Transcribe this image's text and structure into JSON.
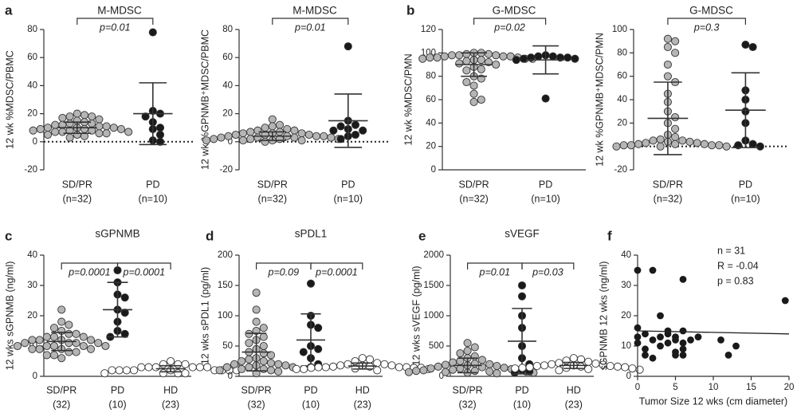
{
  "chart_data": [
    {
      "type": "dotplot",
      "panel": "a",
      "title": "M-MDSC",
      "ylabel": "12 wk %MDSC/PBMC",
      "ylim": [
        -20,
        80
      ],
      "yticks": [
        -20,
        0,
        20,
        40,
        60,
        80
      ],
      "categories": [
        "SD/PR",
        "PD"
      ],
      "category_notes": [
        "(n=32)",
        "(n=10)"
      ],
      "groups": [
        {
          "color": "#b5b5b5",
          "values": [
            20,
            19,
            18,
            18,
            17,
            16,
            15,
            14,
            13,
            13,
            12,
            12,
            11,
            11,
            10,
            10,
            10,
            9,
            9,
            9,
            8,
            8,
            8,
            7,
            7,
            7,
            6,
            6,
            5,
            5,
            4,
            3
          ],
          "mean": 10,
          "sd": 4
        },
        {
          "color": "#1a1a1a",
          "values": [
            78,
            22,
            20,
            18,
            14,
            10,
            9,
            5,
            1,
            0
          ],
          "mean": 20,
          "sd": 22
        }
      ],
      "comparisons": [
        {
          "between": [
            0,
            1
          ],
          "label": "p=0.01"
        }
      ]
    },
    {
      "type": "dotplot",
      "title": "M-MDSC",
      "ylabel": "12 wk %GPNMB⁺MDSC/PBMC",
      "ylim": [
        -20,
        80
      ],
      "yticks": [
        -20,
        0,
        20,
        40,
        60,
        80
      ],
      "categories": [
        "SD/PR",
        "PD"
      ],
      "category_notes": [
        "(n=32)",
        "(n=10)"
      ],
      "groups": [
        {
          "color": "#b5b5b5",
          "values": [
            16,
            12,
            11,
            10,
            9,
            8,
            8,
            7,
            7,
            6,
            6,
            6,
            5,
            5,
            5,
            4,
            4,
            4,
            4,
            3,
            3,
            3,
            3,
            2,
            2,
            2,
            2,
            1,
            1,
            1,
            1,
            0
          ],
          "mean": 4,
          "sd": 3
        },
        {
          "color": "#1a1a1a",
          "values": [
            68,
            15,
            12,
            11,
            9,
            8,
            8,
            5,
            4,
            2
          ],
          "mean": 15,
          "sd": 19
        }
      ],
      "comparisons": [
        {
          "between": [
            0,
            1
          ],
          "label": "p=0.01"
        }
      ]
    },
    {
      "type": "dotplot",
      "panel": "b",
      "title": "G-MDSC",
      "ylabel": "12 wk %MDSC/PMN",
      "ylim": [
        0,
        120
      ],
      "yticks": [
        0,
        20,
        40,
        60,
        80,
        100,
        120
      ],
      "categories": [
        "SD/PR",
        "PD"
      ],
      "category_notes": [
        "(n=32)",
        "(n=10)"
      ],
      "groups": [
        {
          "color": "#b5b5b5",
          "values": [
            100,
            100,
            99,
            99,
            98,
            98,
            98,
            97,
            97,
            97,
            96,
            96,
            96,
            95,
            95,
            95,
            94,
            94,
            93,
            92,
            91,
            90,
            88,
            86,
            85,
            80,
            78,
            75,
            72,
            65,
            60,
            58
          ],
          "mean": 90,
          "sd": 10
        },
        {
          "color": "#1a1a1a",
          "values": [
            98,
            97,
            97,
            96,
            96,
            96,
            95,
            95,
            94,
            61
          ],
          "mean": 94,
          "sd": 12
        }
      ],
      "comparisons": [
        {
          "between": [
            0,
            1
          ],
          "label": "p=0.02"
        }
      ]
    },
    {
      "type": "dotplot",
      "title": "G-MDSC",
      "ylabel": "12 wk %GPNMB⁺MDSC/PMN",
      "ylim": [
        -20,
        100
      ],
      "yticks": [
        -20,
        0,
        20,
        40,
        60,
        80,
        100
      ],
      "categories": [
        "SD/PR",
        "PD"
      ],
      "category_notes": [
        "(n=32)",
        "(n=10)"
      ],
      "groups": [
        {
          "color": "#b5b5b5",
          "values": [
            92,
            90,
            85,
            80,
            70,
            60,
            55,
            45,
            38,
            30,
            25,
            20,
            15,
            10,
            8,
            6,
            5,
            5,
            4,
            4,
            3,
            3,
            2,
            2,
            2,
            1,
            1,
            1,
            1,
            0,
            0,
            0
          ],
          "mean": 24,
          "sd": 31
        },
        {
          "color": "#1a1a1a",
          "values": [
            87,
            85,
            48,
            40,
            30,
            20,
            5,
            2,
            1,
            0
          ],
          "mean": 31,
          "sd": 32
        }
      ],
      "comparisons": [
        {
          "between": [
            0,
            1
          ],
          "label": "p=0.3"
        }
      ]
    },
    {
      "type": "dotplot",
      "panel": "c",
      "title": "sGPNMB",
      "ylabel": "12 wks sGPNMB (ng/ml)",
      "ylim": [
        0,
        40
      ],
      "yticks": [
        0,
        10,
        20,
        30,
        40
      ],
      "categories": [
        "SD/PR",
        "PD",
        "HD"
      ],
      "category_notes": [
        "(32)",
        "(10)",
        "(23)"
      ],
      "groups": [
        {
          "color": "#b5b5b5",
          "values": [
            22,
            18,
            17,
            16,
            15,
            14,
            14,
            13,
            13,
            13,
            12,
            12,
            12,
            12,
            11,
            11,
            11,
            11,
            10,
            10,
            10,
            10,
            10,
            9,
            9,
            9,
            9,
            8,
            8,
            7,
            7,
            6
          ],
          "mean": 11.5,
          "sd": 3
        },
        {
          "color": "#1a1a1a",
          "values": [
            35,
            31,
            27,
            26,
            22,
            21,
            18,
            15,
            14,
            13
          ],
          "mean": 22,
          "sd": 9
        },
        {
          "color": "#ffffff",
          "values": [
            5,
            4,
            4,
            4,
            3,
            3,
            3,
            3,
            3,
            3,
            2,
            2,
            2,
            2,
            2,
            2,
            2,
            2,
            2,
            1,
            1,
            1,
            1
          ],
          "mean": 2.5,
          "sd": 1
        }
      ],
      "comparisons": [
        {
          "between": [
            0,
            1
          ],
          "label": "p=0.0001"
        },
        {
          "between": [
            1,
            2
          ],
          "label": "p=0.0001"
        }
      ]
    },
    {
      "type": "dotplot",
      "panel": "d",
      "title": "sPDL1",
      "ylabel": "12 wks sPDL1 (pg/ml)",
      "ylim": [
        0,
        200
      ],
      "yticks": [
        0,
        50,
        100,
        150,
        200
      ],
      "categories": [
        "SD/PR",
        "PD",
        "HD"
      ],
      "category_notes": [
        "(32)",
        "(10)",
        "(23)"
      ],
      "groups": [
        {
          "color": "#b5b5b5",
          "values": [
            138,
            110,
            90,
            80,
            75,
            70,
            65,
            60,
            55,
            50,
            45,
            40,
            38,
            35,
            30,
            28,
            25,
            25,
            22,
            20,
            20,
            18,
            18,
            15,
            15,
            15,
            12,
            12,
            10,
            10,
            8,
            5
          ],
          "mean": 40,
          "sd": 31
        },
        {
          "color": "#1a1a1a",
          "values": [
            153,
            100,
            85,
            80,
            50,
            45,
            40,
            30,
            20,
            15
          ],
          "mean": 60,
          "sd": 43
        },
        {
          "color": "#ffffff",
          "values": [
            30,
            28,
            25,
            22,
            20,
            20,
            18,
            18,
            18,
            16,
            16,
            15,
            15,
            15,
            15,
            14,
            14,
            14,
            13,
            12,
            12,
            12,
            10
          ],
          "mean": 17,
          "sd": 5
        }
      ],
      "comparisons": [
        {
          "between": [
            0,
            1
          ],
          "label": "p=0.09"
        },
        {
          "between": [
            1,
            2
          ],
          "label": "p=0.0001"
        }
      ]
    },
    {
      "type": "dotplot",
      "panel": "e",
      "title": "sVEGF",
      "ylabel": "12 wks sVEGF (pg/ml)",
      "ylim": [
        0,
        2000
      ],
      "yticks": [
        0,
        500,
        1000,
        1500,
        2000
      ],
      "categories": [
        "SD/PR",
        "PD",
        "HD"
      ],
      "category_notes": [
        "(32)",
        "(10)",
        "(23)"
      ],
      "groups": [
        {
          "color": "#b5b5b5",
          "values": [
            550,
            480,
            420,
            380,
            330,
            300,
            270,
            250,
            230,
            210,
            200,
            190,
            180,
            170,
            160,
            150,
            140,
            130,
            130,
            120,
            110,
            100,
            100,
            90,
            90,
            80,
            80,
            70,
            70,
            60,
            60,
            50
          ],
          "mean": 180,
          "sd": 120
        },
        {
          "color": "#1a1a1a",
          "values": [
            1500,
            1320,
            1000,
            800,
            500,
            300,
            200,
            100,
            80,
            60
          ],
          "mean": 580,
          "sd": 540
        },
        {
          "color": "#ffffff",
          "values": [
            300,
            280,
            260,
            240,
            220,
            210,
            200,
            190,
            180,
            180,
            170,
            170,
            160,
            160,
            150,
            150,
            140,
            140,
            130,
            130,
            120,
            110,
            100
          ],
          "mean": 180,
          "sd": 50
        }
      ],
      "comparisons": [
        {
          "between": [
            0,
            1
          ],
          "label": "p=0.01"
        },
        {
          "between": [
            1,
            2
          ],
          "label": "p=0.03"
        }
      ]
    },
    {
      "type": "scatter",
      "panel": "f",
      "ylabel": "sGPNMB 12 wks  (ng/ml)",
      "xlabel": "Tumor Size 12 wks (cm diameter)",
      "xlim": [
        0,
        20
      ],
      "xticks": [
        0,
        5,
        10,
        15,
        20
      ],
      "ylim": [
        0,
        40
      ],
      "yticks": [
        0,
        10,
        20,
        30,
        40
      ],
      "color": "#1a1a1a",
      "x": [
        0,
        0,
        0,
        0,
        1,
        1,
        1,
        2,
        2,
        2,
        3,
        3,
        3,
        4,
        4,
        4,
        5,
        5,
        5,
        5,
        6,
        6,
        6,
        6,
        6,
        7,
        8,
        11,
        12,
        13,
        19.5
      ],
      "y": [
        35,
        16,
        13,
        11,
        14,
        9,
        7,
        35,
        12,
        6,
        13,
        20,
        10,
        14,
        11,
        15,
        13,
        8,
        12,
        7,
        32,
        15,
        11,
        9,
        7,
        12,
        13,
        12,
        7,
        10,
        25
      ],
      "trend_line": {
        "x": [
          0,
          20
        ],
        "y": [
          15,
          14
        ]
      },
      "annotations": [
        "n = 31",
        "R = -0.04",
        "p = 0.83"
      ]
    }
  ]
}
